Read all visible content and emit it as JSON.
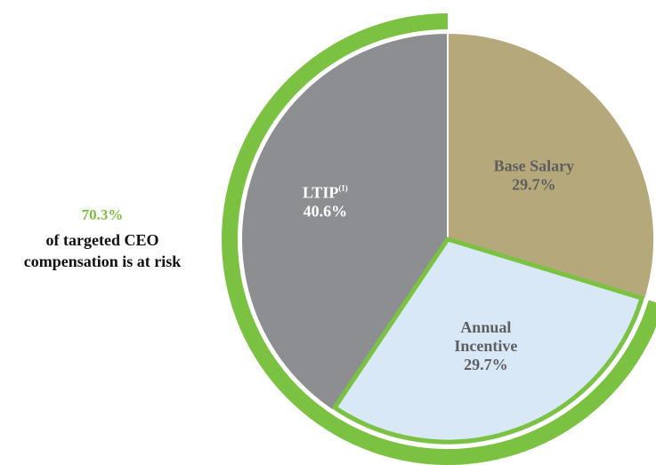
{
  "chart_data": {
    "type": "pie",
    "title": "",
    "slices": [
      {
        "label": "Base Salary",
        "value": 29.7,
        "value_label": "29.7%",
        "color": "#b5a97b",
        "text_color": "#5e5e60",
        "label_lines": [
          "Base Salary"
        ],
        "at_risk": false
      },
      {
        "label": "Annual Incentive",
        "value": 29.7,
        "value_label": "29.7%",
        "color": "#d9e8f7",
        "text_color": "#5e5e60",
        "label_lines": [
          "Annual",
          "Incentive"
        ],
        "at_risk": true
      },
      {
        "label": "LTIP",
        "footnote": "(1)",
        "value": 40.6,
        "value_label": "40.6%",
        "color": "#8d8e92",
        "text_color": "#ffffff",
        "label_lines": [
          "LTIP"
        ],
        "at_risk": true
      }
    ],
    "at_risk_highlight": {
      "percent": "70.3%",
      "text_lines": [
        "of targeted CEO",
        "compensation is at risk"
      ],
      "color": "#7cc242"
    }
  }
}
